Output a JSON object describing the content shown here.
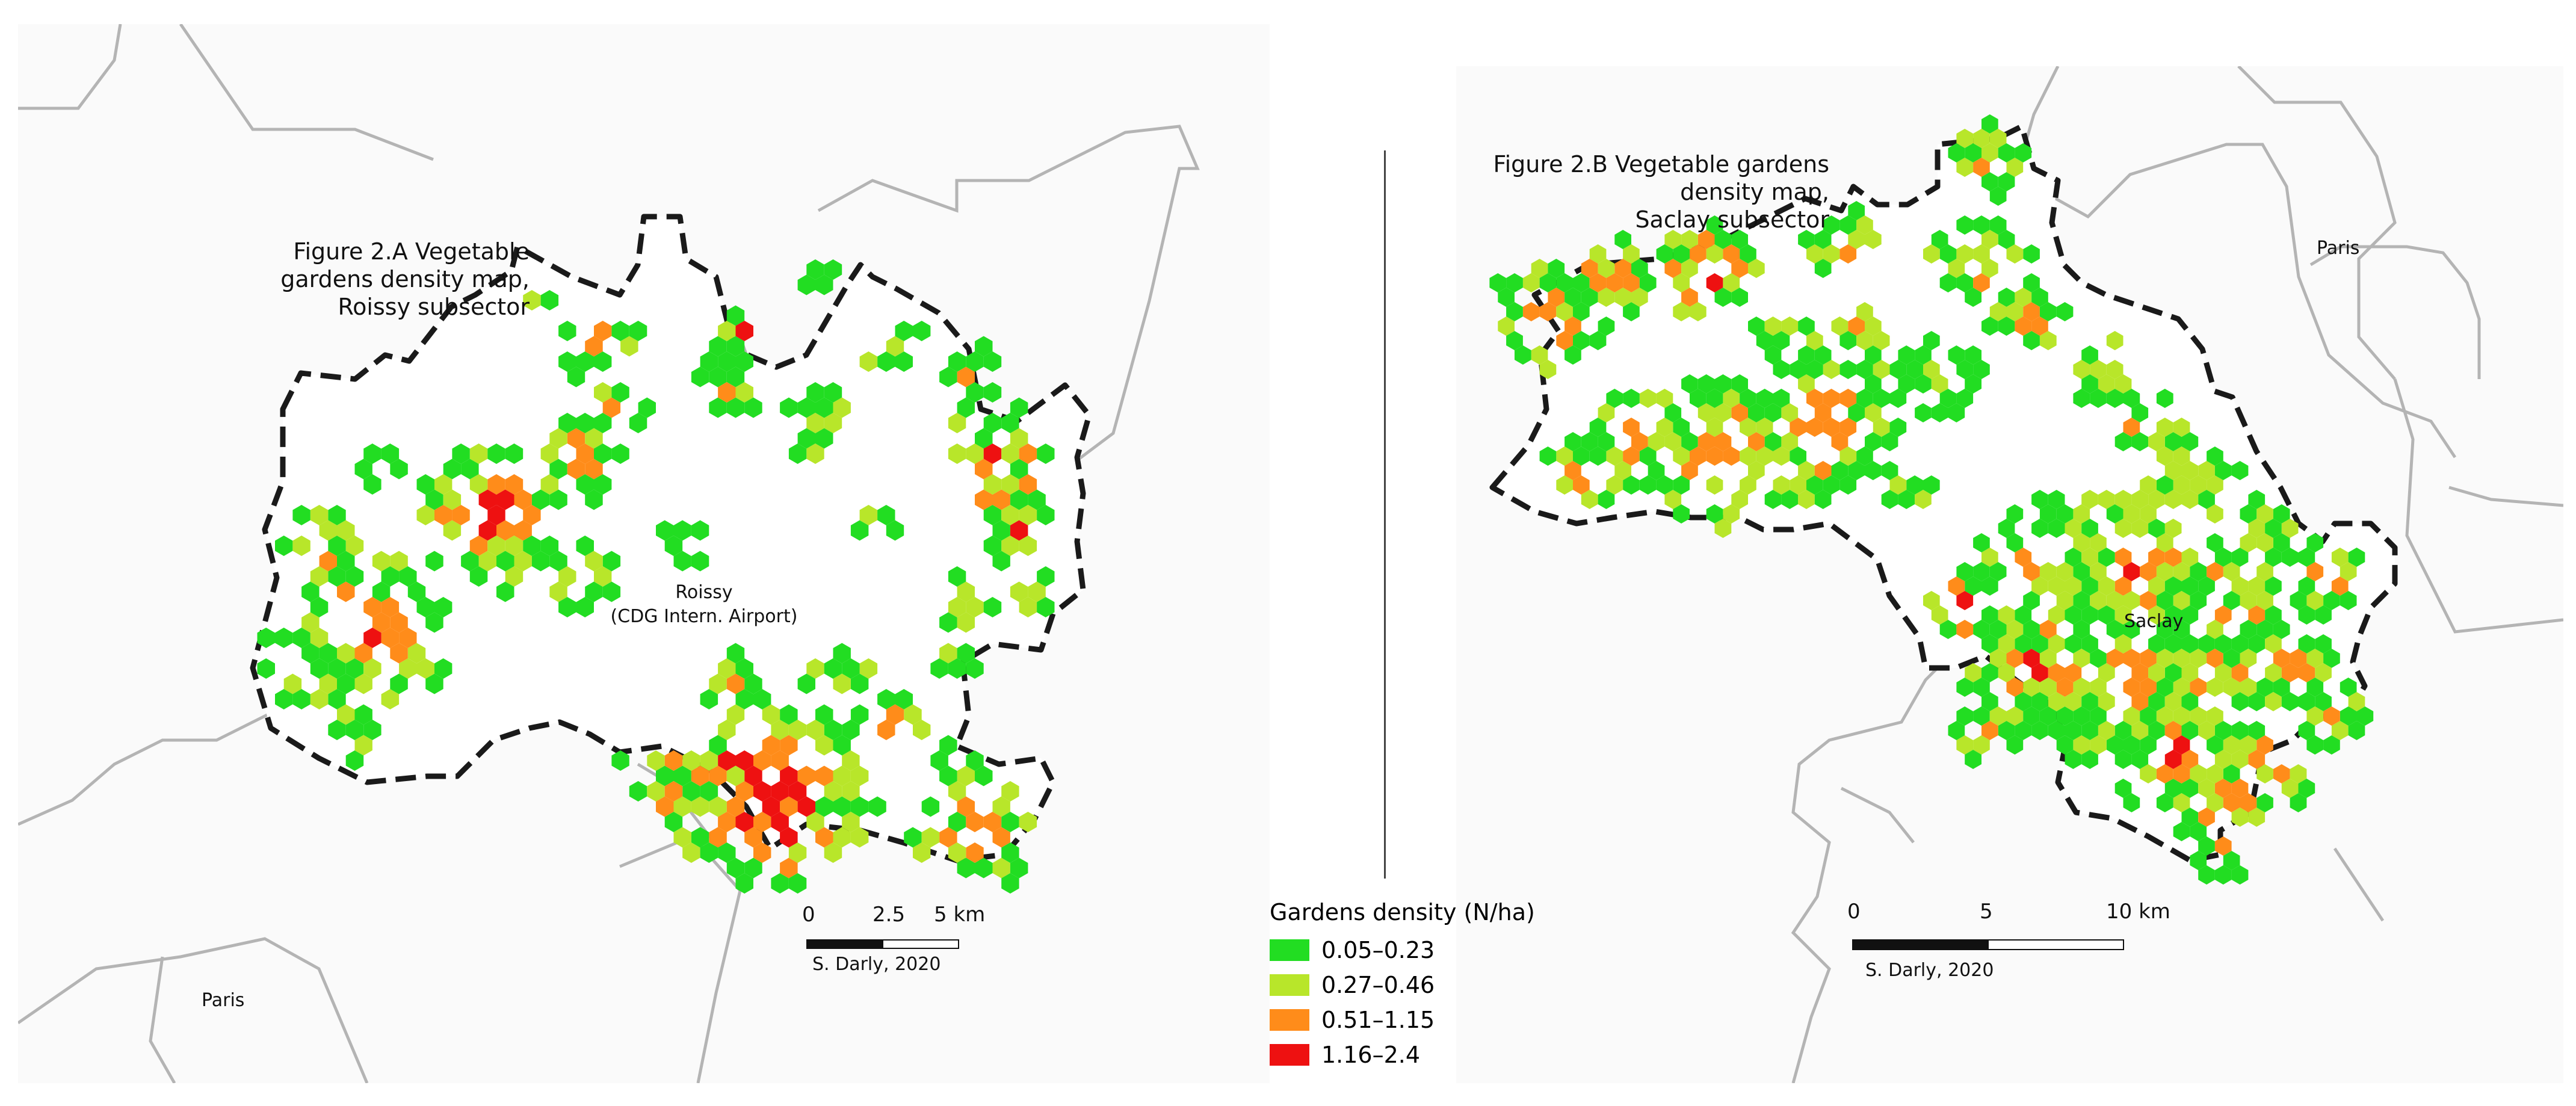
{
  "colors": {
    "c1": "#22dd22",
    "c2": "#b8e62a",
    "c3": "#ff8c1a",
    "c4": "#ee1111",
    "land": "#fafafa",
    "line": "#b4b4b4",
    "boundary": "#1a1a1a"
  },
  "figA": {
    "title_line1": "Figure 2.A Vegetable gardens density map,",
    "title_line2": "Roissy subsector",
    "center_label_1": "Roissy",
    "center_label_2": "(CDG Intern. Airport)",
    "paris_label": "Paris",
    "scale": {
      "t0": "0",
      "t1": "2.5",
      "t2": "5 km"
    },
    "credit": "S. Darly, 2020"
  },
  "figB": {
    "title_line1": "Figure 2.B Vegetable gardens density map,",
    "title_line2": "Saclay subsector",
    "center_label": "Saclay",
    "paris_label": "Paris",
    "scale": {
      "t0": "0",
      "t1": "5",
      "t2": "10 km"
    },
    "credit": "S. Darly, 2020"
  },
  "legend": {
    "title": "Gardens density (N/ha)",
    "items": [
      {
        "label": "0.05–0.23",
        "color": "#22dd22"
      },
      {
        "label": "0.27–0.46",
        "color": "#b8e62a"
      },
      {
        "label": "0.51–1.15",
        "color": "#ff8c1a"
      },
      {
        "label": "1.16–2.4",
        "color": "#ee1111"
      }
    ]
  }
}
